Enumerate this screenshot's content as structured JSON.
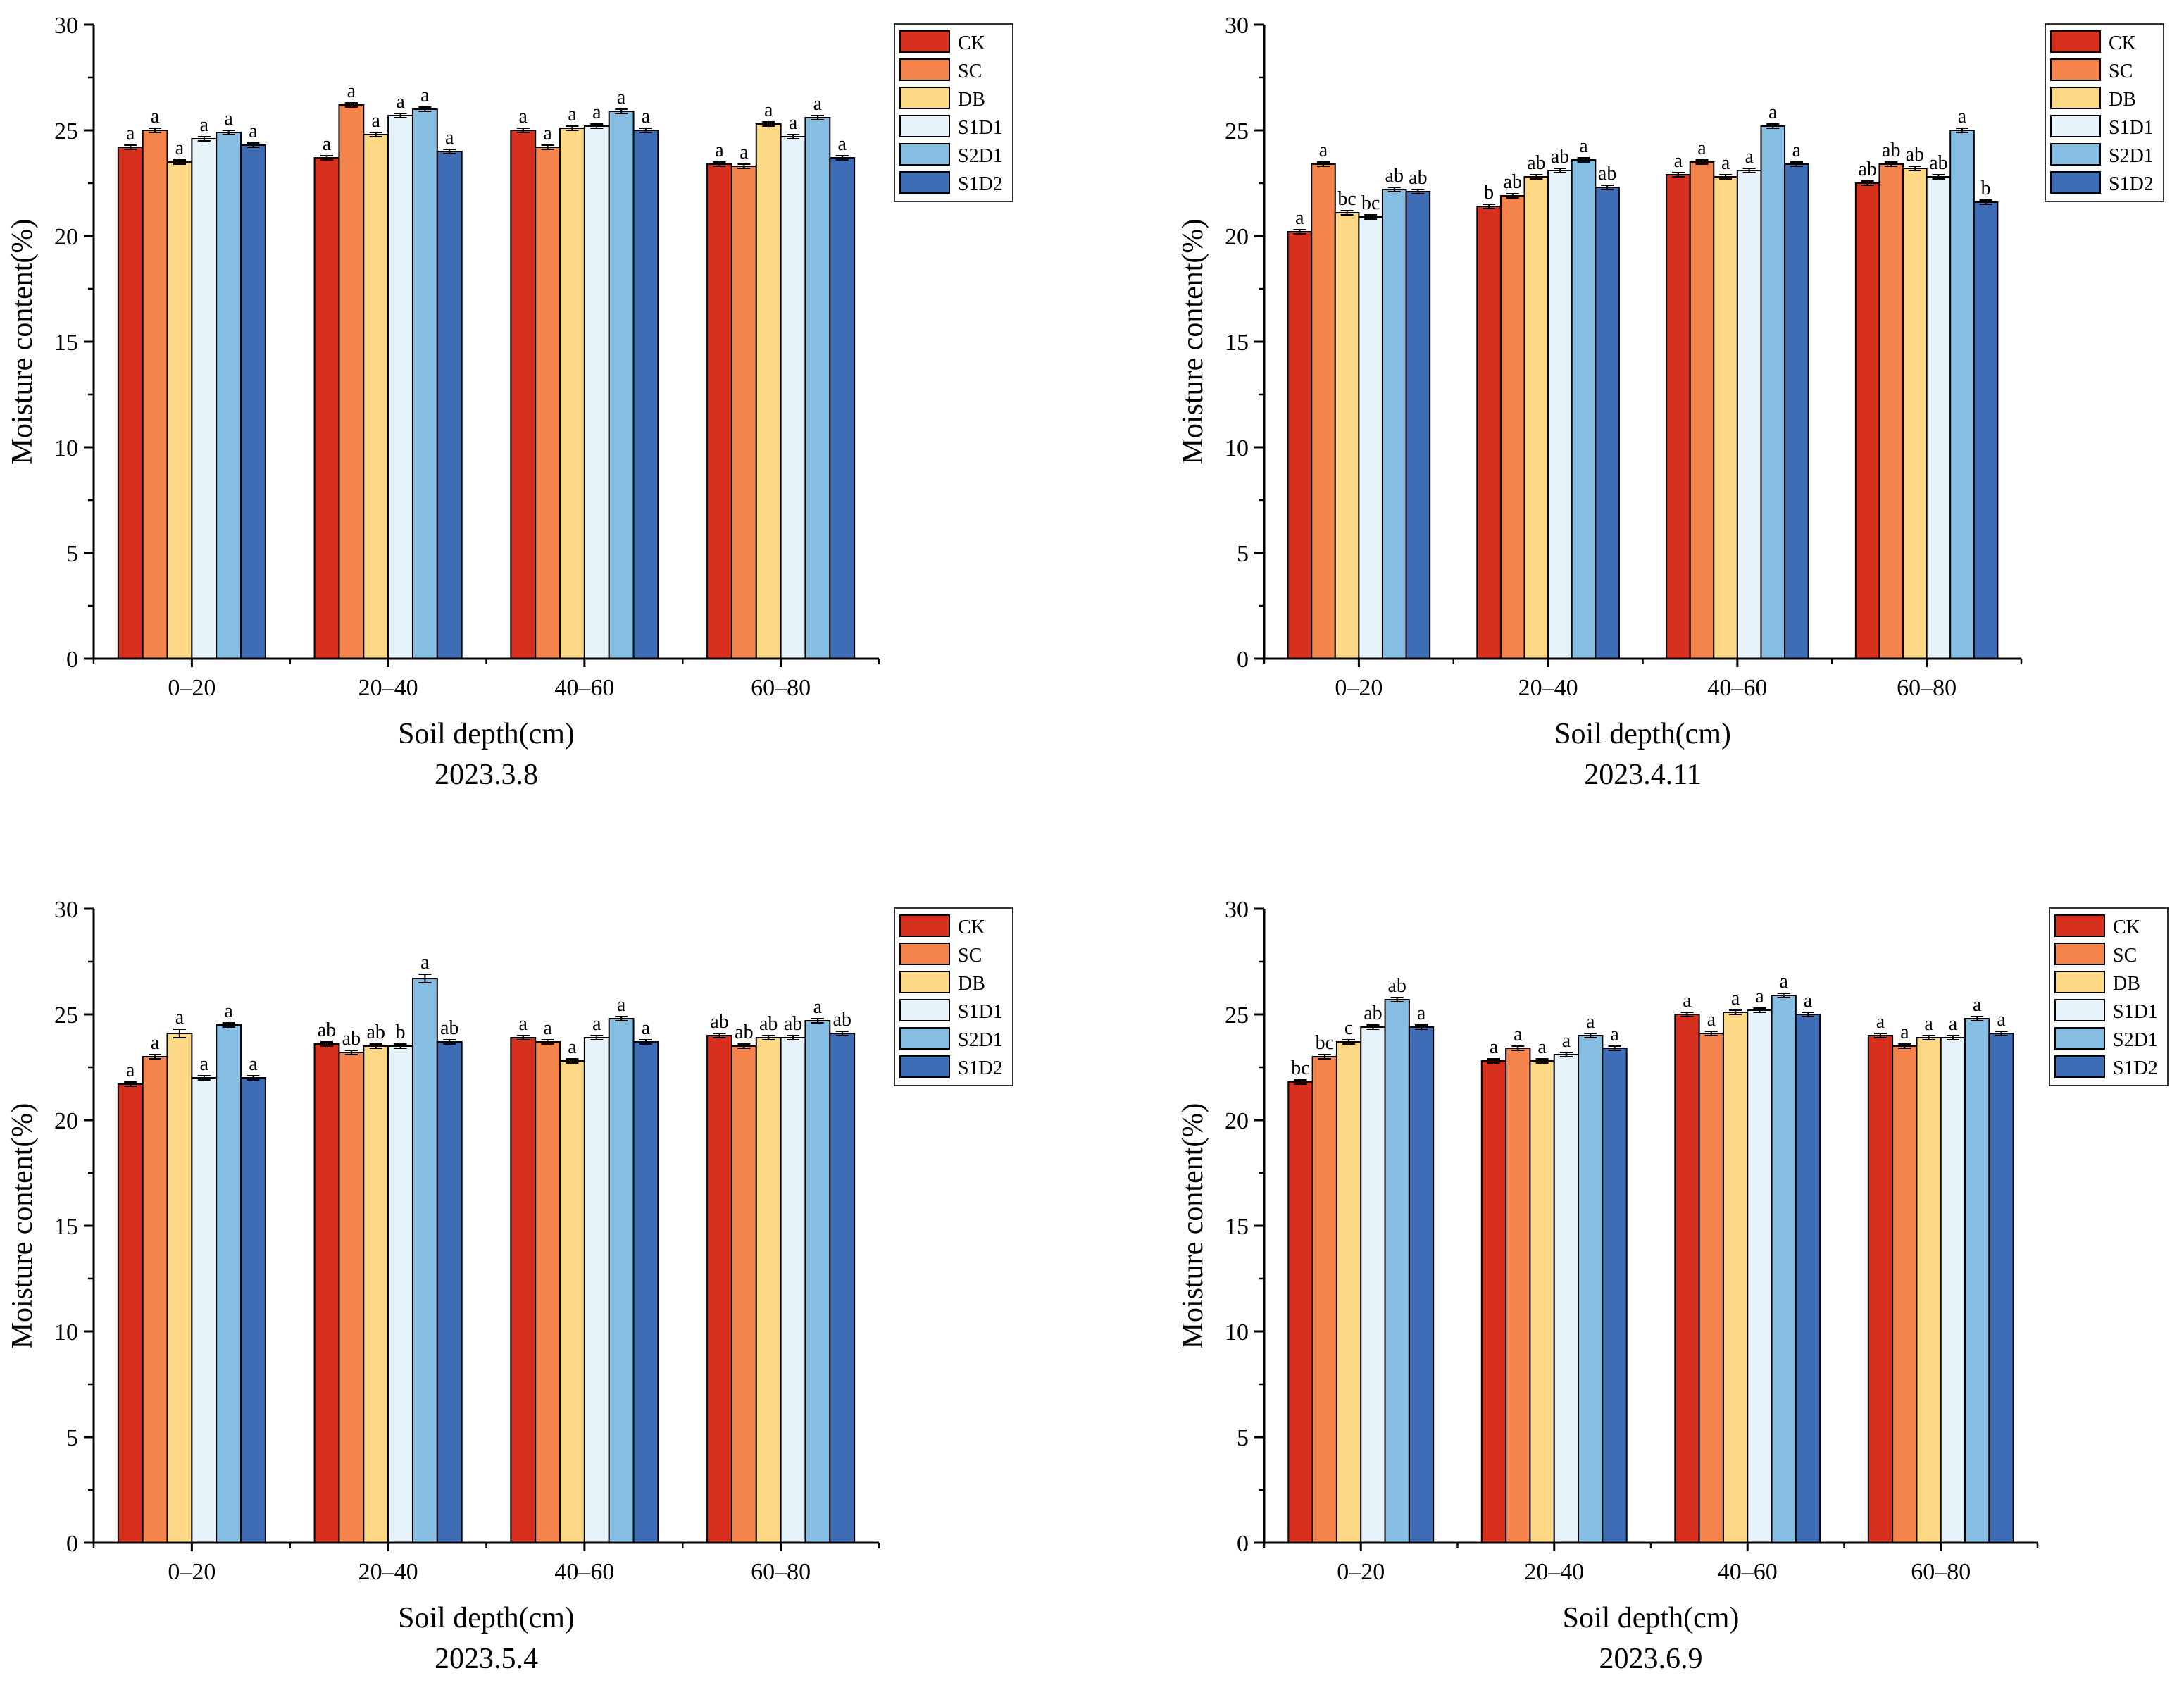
{
  "colors": {
    "CK": "#d7301f",
    "SC": "#f4844c",
    "DB": "#fcd884",
    "S1D1": "#e6f3fb",
    "S2D1": "#86bde3",
    "S1D2": "#3f6db5"
  },
  "chart_data": [
    {
      "type": "bar",
      "title": "2023.3.8",
      "xlabel": "Soil depth(cm)",
      "ylabel": "Moisture content(%)",
      "ylim": [
        0,
        30
      ],
      "yticks": [
        0,
        5,
        10,
        15,
        20,
        25,
        30
      ],
      "categories": [
        "0–20",
        "20–40",
        "40–60",
        "60–80"
      ],
      "legend": "top-right",
      "series": [
        {
          "name": "CK",
          "values": [
            24.2,
            23.7,
            25.0,
            23.4
          ],
          "err": [
            0.1,
            0.1,
            0.1,
            0.1
          ],
          "labels": [
            "a",
            "a",
            "a",
            "a"
          ]
        },
        {
          "name": "SC",
          "values": [
            25.0,
            26.2,
            24.2,
            23.3
          ],
          "err": [
            0.1,
            0.1,
            0.1,
            0.1
          ],
          "labels": [
            "a",
            "a",
            "a",
            "a"
          ]
        },
        {
          "name": "DB",
          "values": [
            23.5,
            24.8,
            25.1,
            25.3
          ],
          "err": [
            0.1,
            0.1,
            0.1,
            0.1
          ],
          "labels": [
            "a",
            "a",
            "a",
            "a"
          ]
        },
        {
          "name": "S1D1",
          "values": [
            24.6,
            25.7,
            25.2,
            24.7
          ],
          "err": [
            0.1,
            0.1,
            0.1,
            0.1
          ],
          "labels": [
            "a",
            "a",
            "a",
            "a"
          ]
        },
        {
          "name": "S2D1",
          "values": [
            24.9,
            26.0,
            25.9,
            25.6
          ],
          "err": [
            0.1,
            0.1,
            0.1,
            0.1
          ],
          "labels": [
            "a",
            "a",
            "a",
            "a"
          ]
        },
        {
          "name": "S1D2",
          "values": [
            24.3,
            24.0,
            25.0,
            23.7
          ],
          "err": [
            0.1,
            0.1,
            0.1,
            0.1
          ],
          "labels": [
            "a",
            "a",
            "a",
            "a"
          ]
        }
      ]
    },
    {
      "type": "bar",
      "title": "2023.4.11",
      "xlabel": "Soil depth(cm)",
      "ylabel": "Moisture content(%)",
      "ylim": [
        0,
        30
      ],
      "yticks": [
        0,
        5,
        10,
        15,
        20,
        25,
        30
      ],
      "categories": [
        "0–20",
        "20–40",
        "40–60",
        "60–80"
      ],
      "legend": "top-right",
      "series": [
        {
          "name": "CK",
          "values": [
            20.2,
            21.4,
            22.9,
            22.5
          ],
          "err": [
            0.1,
            0.1,
            0.1,
            0.1
          ],
          "labels": [
            "a",
            "b",
            "a",
            "ab"
          ]
        },
        {
          "name": "SC",
          "values": [
            23.4,
            21.9,
            23.5,
            23.4
          ],
          "err": [
            0.1,
            0.1,
            0.1,
            0.1
          ],
          "labels": [
            "a",
            "ab",
            "a",
            "ab"
          ]
        },
        {
          "name": "DB",
          "values": [
            21.1,
            22.8,
            22.8,
            23.2
          ],
          "err": [
            0.1,
            0.1,
            0.1,
            0.1
          ],
          "labels": [
            "bc",
            "ab",
            "a",
            "ab"
          ]
        },
        {
          "name": "S1D1",
          "values": [
            20.9,
            23.1,
            23.1,
            22.8
          ],
          "err": [
            0.1,
            0.1,
            0.1,
            0.1
          ],
          "labels": [
            "bc",
            "ab",
            "a",
            "ab"
          ]
        },
        {
          "name": "S2D1",
          "values": [
            22.2,
            23.6,
            25.2,
            25.0
          ],
          "err": [
            0.1,
            0.1,
            0.1,
            0.1
          ],
          "labels": [
            "ab",
            "a",
            "a",
            "a"
          ]
        },
        {
          "name": "S1D2",
          "values": [
            22.1,
            22.3,
            23.4,
            21.6
          ],
          "err": [
            0.1,
            0.1,
            0.1,
            0.1
          ],
          "labels": [
            "ab",
            "ab",
            "a",
            "b"
          ]
        }
      ]
    },
    {
      "type": "bar",
      "title": "2023.5.4",
      "xlabel": "Soil depth(cm)",
      "ylabel": "Moisture content(%)",
      "ylim": [
        0,
        30
      ],
      "yticks": [
        0,
        5,
        10,
        15,
        20,
        25,
        30
      ],
      "categories": [
        "0–20",
        "20–40",
        "40–60",
        "60–80"
      ],
      "legend": "top-right",
      "series": [
        {
          "name": "CK",
          "values": [
            21.7,
            23.6,
            23.9,
            24.0
          ],
          "err": [
            0.1,
            0.1,
            0.1,
            0.1
          ],
          "labels": [
            "a",
            "ab",
            "a",
            "ab"
          ]
        },
        {
          "name": "SC",
          "values": [
            23.0,
            23.2,
            23.7,
            23.5
          ],
          "err": [
            0.1,
            0.1,
            0.1,
            0.1
          ],
          "labels": [
            "a",
            "ab",
            "a",
            "ab"
          ]
        },
        {
          "name": "DB",
          "values": [
            24.1,
            23.5,
            22.8,
            23.9
          ],
          "err": [
            0.2,
            0.1,
            0.1,
            0.1
          ],
          "labels": [
            "a",
            "ab",
            "a",
            "ab"
          ]
        },
        {
          "name": "S1D1",
          "values": [
            22.0,
            23.5,
            23.9,
            23.9
          ],
          "err": [
            0.1,
            0.1,
            0.1,
            0.1
          ],
          "labels": [
            "a",
            "b",
            "a",
            "ab"
          ]
        },
        {
          "name": "S2D1",
          "values": [
            24.5,
            26.7,
            24.8,
            24.7
          ],
          "err": [
            0.1,
            0.2,
            0.1,
            0.1
          ],
          "labels": [
            "a",
            "a",
            "a",
            "a"
          ]
        },
        {
          "name": "S1D2",
          "values": [
            22.0,
            23.7,
            23.7,
            24.1
          ],
          "err": [
            0.1,
            0.1,
            0.1,
            0.1
          ],
          "labels": [
            "a",
            "ab",
            "a",
            "ab"
          ]
        }
      ]
    },
    {
      "type": "bar",
      "title": "2023.6.9",
      "xlabel": "Soil depth(cm)",
      "ylabel": "Moisture content(%)",
      "ylim": [
        0,
        30
      ],
      "yticks": [
        0,
        5,
        10,
        15,
        20,
        25,
        30
      ],
      "categories": [
        "0–20",
        "20–40",
        "40–60",
        "60–80"
      ],
      "legend": "top-right",
      "series": [
        {
          "name": "CK",
          "values": [
            21.8,
            22.8,
            25.0,
            24.0
          ],
          "err": [
            0.1,
            0.1,
            0.1,
            0.1
          ],
          "labels": [
            "bc",
            "a",
            "a",
            "a"
          ]
        },
        {
          "name": "SC",
          "values": [
            23.0,
            23.4,
            24.1,
            23.5
          ],
          "err": [
            0.1,
            0.1,
            0.1,
            0.1
          ],
          "labels": [
            "bc",
            "a",
            "a",
            "a"
          ]
        },
        {
          "name": "DB",
          "values": [
            23.7,
            22.8,
            25.1,
            23.9
          ],
          "err": [
            0.1,
            0.1,
            0.1,
            0.1
          ],
          "labels": [
            "c",
            "a",
            "a",
            "a"
          ]
        },
        {
          "name": "S1D1",
          "values": [
            24.4,
            23.1,
            25.2,
            23.9
          ],
          "err": [
            0.1,
            0.1,
            0.1,
            0.1
          ],
          "labels": [
            "ab",
            "a",
            "a",
            "a"
          ]
        },
        {
          "name": "S2D1",
          "values": [
            25.7,
            24.0,
            25.9,
            24.8
          ],
          "err": [
            0.1,
            0.1,
            0.1,
            0.1
          ],
          "labels": [
            "ab",
            "a",
            "a",
            "a"
          ]
        },
        {
          "name": "S1D2",
          "values": [
            24.4,
            23.4,
            25.0,
            24.1
          ],
          "err": [
            0.1,
            0.1,
            0.1,
            0.1
          ],
          "labels": [
            "a",
            "a",
            "a",
            "a"
          ]
        }
      ]
    }
  ]
}
